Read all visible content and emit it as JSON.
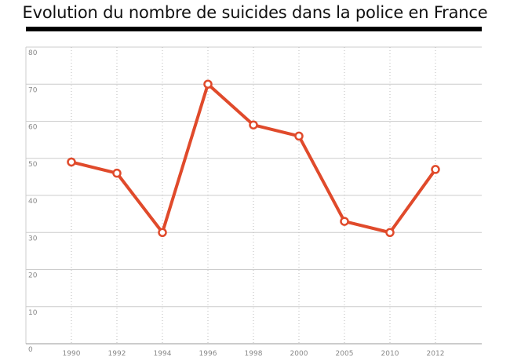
{
  "chart_data": {
    "type": "line",
    "title": "Evolution du nombre de suicides dans la police en France",
    "xlabel": "",
    "ylabel": "",
    "categories": [
      "1990",
      "1992",
      "1994",
      "1996",
      "1998",
      "2000",
      "2005",
      "2010",
      "2012"
    ],
    "series": [
      {
        "values": [
          49,
          46,
          30,
          70,
          59,
          56,
          33,
          30,
          47
        ]
      }
    ],
    "ylim": [
      0,
      80
    ],
    "yticks": [
      0,
      10,
      20,
      30,
      40,
      50,
      60,
      70,
      80
    ],
    "grid": {
      "horizontal": "solid",
      "vertical": "dotted"
    },
    "legend": "none",
    "colors": {
      "line": "#e04a2b",
      "marker_fill": "#ffffff",
      "grid": "#cccccc",
      "axis_text": "#888888",
      "title_rule": "#000000"
    }
  }
}
